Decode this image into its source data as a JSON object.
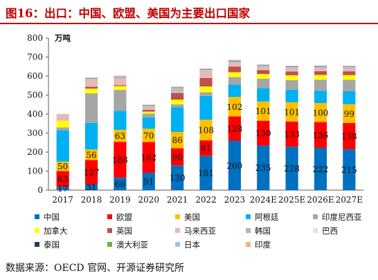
{
  "figure": {
    "title": "图16：出口：中国、欧盟、美国为主要出口国家",
    "source": "数据来源：OECD 官网、开源证券研究所"
  },
  "chart_data": {
    "type": "bar",
    "stacked": true,
    "title": "",
    "xlabel": "",
    "ylabel": "万吨",
    "ylim": [
      0,
      800
    ],
    "yticks": [
      0,
      100,
      200,
      300,
      400,
      500,
      600,
      700,
      800
    ],
    "grid": false,
    "legend_position": "bottom",
    "categories": [
      "2017",
      "2018",
      "2019",
      "2020",
      "2021",
      "2022",
      "2023",
      "2024E",
      "2025E",
      "2026E",
      "2027E"
    ],
    "series": [
      {
        "name": "中国",
        "color": "#0070c0",
        "values": [
          17,
          31,
          66,
          91,
          130,
          181,
          260,
          235,
          228,
          222,
          215
        ],
        "labels": [
          "17",
          "31",
          "66",
          "91",
          "130",
          "181",
          "260",
          "235",
          "228",
          "222",
          "215"
        ]
      },
      {
        "name": "欧盟",
        "color": "#ff0000",
        "values": [
          83,
          127,
          188,
          162,
          90,
          81,
          128,
          130,
          133,
          136,
          138
        ],
        "labels": [
          "83",
          "127",
          "188",
          "162",
          "90",
          "81",
          "128",
          "130",
          "133",
          "136",
          "138"
        ]
      },
      {
        "name": "美国",
        "color": "#ffc000",
        "values": [
          50,
          56,
          63,
          70,
          86,
          108,
          102,
          101,
          101,
          100,
          99
        ],
        "labels": [
          "50",
          "56",
          "63",
          "70",
          "86",
          "108",
          "102",
          "101",
          "101",
          "100",
          "99"
        ]
      },
      {
        "name": "阿根廷",
        "color": "#00b0f0",
        "values": [
          165,
          140,
          100,
          60,
          130,
          125,
          65,
          70,
          65,
          65,
          68
        ],
        "labels": []
      },
      {
        "name": "印度尼西亚",
        "color": "#a6a6a6",
        "values": [
          15,
          155,
          110,
          20,
          15,
          20,
          40,
          50,
          52,
          58,
          60
        ],
        "labels": []
      },
      {
        "name": "加拿大",
        "color": "#ffff00",
        "values": [
          35,
          25,
          20,
          10,
          25,
          30,
          25,
          25,
          25,
          25,
          25
        ],
        "labels": []
      },
      {
        "name": "英国",
        "color": "#c0504d",
        "values": [
          0,
          10,
          5,
          10,
          35,
          45,
          30,
          20,
          20,
          20,
          20
        ],
        "labels": []
      },
      {
        "name": "马来西亚",
        "color": "#e6b9b8",
        "values": [
          35,
          35,
          35,
          12,
          10,
          35,
          20,
          15,
          15,
          15,
          15
        ],
        "labels": []
      },
      {
        "name": "韩国",
        "color": "#a5b6cc",
        "values": [
          0,
          3,
          5,
          5,
          10,
          5,
          5,
          5,
          5,
          5,
          5
        ],
        "labels": []
      },
      {
        "name": "巴西",
        "color": "#e0e0e0",
        "values": [
          0,
          3,
          3,
          3,
          5,
          3,
          3,
          3,
          3,
          3,
          3
        ],
        "labels": []
      },
      {
        "name": "泰国",
        "color": "#1f3864",
        "values": [
          0,
          2,
          2,
          2,
          2,
          2,
          2,
          2,
          2,
          2,
          2
        ],
        "labels": []
      },
      {
        "name": "澳大利亚",
        "color": "#70ad47",
        "values": [
          0,
          0,
          0,
          0,
          0,
          0,
          0,
          0,
          0,
          0,
          0
        ],
        "labels": []
      },
      {
        "name": "日本",
        "color": "#9dc3e6",
        "values": [
          0,
          2,
          2,
          2,
          2,
          2,
          2,
          2,
          2,
          2,
          2
        ],
        "labels": []
      },
      {
        "name": "印度",
        "color": "#f4b183",
        "values": [
          0,
          3,
          3,
          3,
          5,
          3,
          3,
          3,
          3,
          3,
          3
        ],
        "labels": []
      }
    ]
  }
}
